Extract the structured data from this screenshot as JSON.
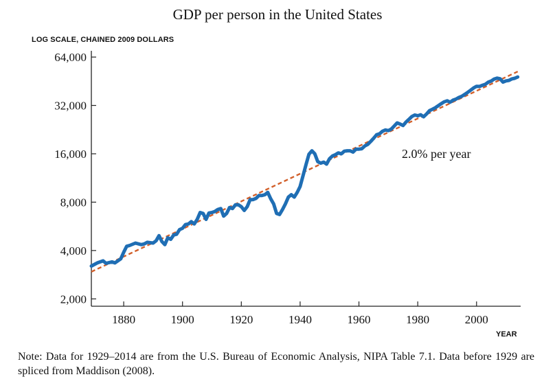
{
  "chart_data": {
    "type": "line",
    "title": "GDP per person in the United States",
    "ylabel": "LOG SCALE, CHAINED 2009 DOLLARS",
    "xlabel": "YEAR",
    "yscale": "log2",
    "ylim": [
      1800,
      70000
    ],
    "xlim": [
      1869,
      2015
    ],
    "yticks": [
      2000,
      4000,
      8000,
      16000,
      32000,
      64000
    ],
    "ytick_labels": [
      "2,000",
      "4,000",
      "8,000",
      "16,000",
      "32,000",
      "64,000"
    ],
    "xticks": [
      1880,
      1900,
      1920,
      1940,
      1960,
      1980,
      2000
    ],
    "xtick_labels": [
      "1880",
      "1900",
      "1920",
      "1940",
      "1960",
      "1980",
      "2000"
    ],
    "grid": false,
    "annotation": "2.0% per year",
    "series": [
      {
        "color": "#1f6eb4",
        "x": [
          1869,
          1871,
          1873,
          1874,
          1876,
          1877,
          1879,
          1880,
          1881,
          1882,
          1884,
          1886,
          1887,
          1888,
          1890,
          1891,
          1892,
          1893,
          1894,
          1895,
          1896,
          1897,
          1898,
          1899,
          1900,
          1901,
          1902,
          1903,
          1904,
          1905,
          1906,
          1907,
          1908,
          1909,
          1910,
          1911,
          1912,
          1913,
          1914,
          1915,
          1916,
          1917,
          1918,
          1919,
          1920,
          1921,
          1922,
          1923,
          1924,
          1925,
          1926,
          1927,
          1928,
          1929,
          1930,
          1931,
          1932,
          1933,
          1934,
          1935,
          1936,
          1937,
          1938,
          1939,
          1940,
          1941,
          1942,
          1943,
          1944,
          1945,
          1946,
          1947,
          1948,
          1949,
          1950,
          1951,
          1952,
          1953,
          1954,
          1955,
          1956,
          1957,
          1958,
          1959,
          1960,
          1961,
          1962,
          1963,
          1964,
          1965,
          1966,
          1967,
          1968,
          1969,
          1970,
          1971,
          1972,
          1973,
          1974,
          1975,
          1976,
          1977,
          1978,
          1979,
          1980,
          1981,
          1982,
          1983,
          1984,
          1985,
          1986,
          1987,
          1988,
          1989,
          1990,
          1991,
          1992,
          1993,
          1994,
          1995,
          1996,
          1997,
          1998,
          1999,
          2000,
          2001,
          2002,
          2003,
          2004,
          2005,
          2006,
          2007,
          2008,
          2009,
          2010,
          2011,
          2012,
          2013,
          2014
        ],
        "y": [
          3200,
          3350,
          3450,
          3330,
          3400,
          3350,
          3550,
          3900,
          4250,
          4300,
          4450,
          4350,
          4400,
          4500,
          4450,
          4600,
          4950,
          4550,
          4350,
          4800,
          4700,
          5000,
          5050,
          5400,
          5500,
          5800,
          5850,
          6050,
          5850,
          6250,
          6900,
          6800,
          6250,
          6850,
          6900,
          7000,
          7200,
          7300,
          6550,
          6800,
          7400,
          7300,
          7700,
          7700,
          7500,
          7100,
          7500,
          8300,
          8300,
          8450,
          8800,
          8800,
          8900,
          9200,
          8400,
          7800,
          6800,
          6700,
          7200,
          7800,
          8600,
          8900,
          8600,
          9200,
          10000,
          11700,
          13700,
          15900,
          16700,
          16000,
          14300,
          14000,
          14200,
          13800,
          14900,
          15500,
          15800,
          16200,
          16000,
          16600,
          16700,
          16700,
          16400,
          17100,
          17100,
          17200,
          17900,
          18300,
          19100,
          20000,
          21000,
          21300,
          22100,
          22500,
          22300,
          22800,
          23800,
          24900,
          24500,
          24000,
          25200,
          26200,
          27300,
          27900,
          27600,
          28000,
          27200,
          28300,
          29700,
          30300,
          31000,
          31900,
          32800,
          33700,
          34200,
          33500,
          34500,
          35000,
          35900,
          36500,
          37500,
          38600,
          39800,
          41100,
          42100,
          42000,
          42700,
          43300,
          44700,
          45400,
          46700,
          47300,
          46900,
          44700,
          45500,
          45800,
          46800,
          47200,
          48100
        ]
      }
    ],
    "trend": {
      "color": "#d2602b",
      "style": "dashed",
      "label": "2.0% per year",
      "x": [
        1869,
        2014
      ],
      "y": [
        2950,
        52000
      ]
    }
  },
  "note": "Note: Data for 1929–2014 are from the U.S. Bureau of Economic Analysis, NIPA Table 7.1. Data before 1929 are spliced from Maddison (2008)."
}
